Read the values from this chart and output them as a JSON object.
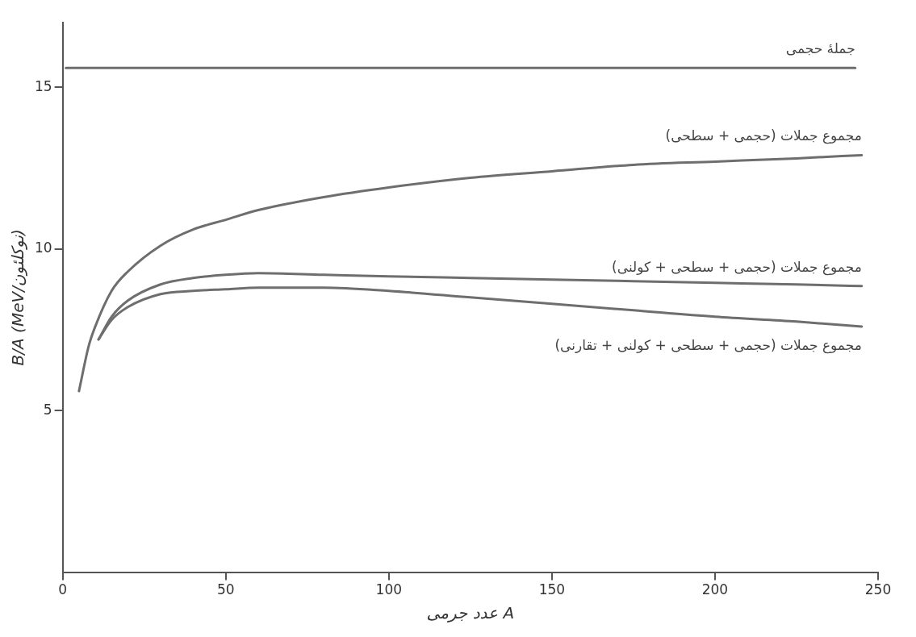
{
  "chart_data": {
    "type": "line",
    "xlabel": "عدد جرمی A",
    "ylabel": "B/A (MeV/نوکلئون)",
    "xlim": [
      0,
      250
    ],
    "xticks": [
      0,
      50,
      100,
      150,
      200,
      250
    ],
    "ylim": [
      0,
      17
    ],
    "yticks": [
      5,
      10,
      15
    ],
    "grid": false,
    "legend": false,
    "marker": "none",
    "line_style": "solid",
    "series": [
      {
        "name": "جملهٔ حجمی",
        "color": "#6e6e6e",
        "x": [
          1,
          50,
          100,
          150,
          200,
          243
        ],
        "values": [
          15.6,
          15.6,
          15.6,
          15.6,
          15.6,
          15.6
        ]
      },
      {
        "name": "مجموع جملات (حجمی + سطحی)",
        "color": "#6e6e6e",
        "x": [
          5,
          8,
          10,
          15,
          20,
          30,
          40,
          50,
          60,
          80,
          100,
          125,
          150,
          175,
          200,
          225,
          245
        ],
        "values": [
          5.6,
          7.0,
          7.6,
          8.7,
          9.3,
          10.1,
          10.6,
          10.9,
          11.2,
          11.6,
          11.9,
          12.2,
          12.4,
          12.6,
          12.7,
          12.8,
          12.9
        ]
      },
      {
        "name": "مجموع جملات (حجمی + سطحی + کولنی)",
        "color": "#6e6e6e",
        "x": [
          11,
          15,
          20,
          30,
          40,
          50,
          60,
          80,
          100,
          125,
          150,
          175,
          200,
          225,
          245
        ],
        "values": [
          7.2,
          7.9,
          8.4,
          8.9,
          9.1,
          9.2,
          9.25,
          9.2,
          9.15,
          9.1,
          9.05,
          9.0,
          8.95,
          8.9,
          8.85
        ]
      },
      {
        "name": "مجموع جملات (حجمی + سطحی + کولنی + تقارنی)",
        "color": "#6e6e6e",
        "x": [
          11,
          15,
          20,
          30,
          40,
          50,
          60,
          80,
          100,
          125,
          150,
          175,
          200,
          225,
          245
        ],
        "values": [
          7.2,
          7.8,
          8.2,
          8.6,
          8.7,
          8.75,
          8.8,
          8.8,
          8.7,
          8.5,
          8.3,
          8.1,
          7.9,
          7.75,
          7.6
        ]
      }
    ]
  }
}
